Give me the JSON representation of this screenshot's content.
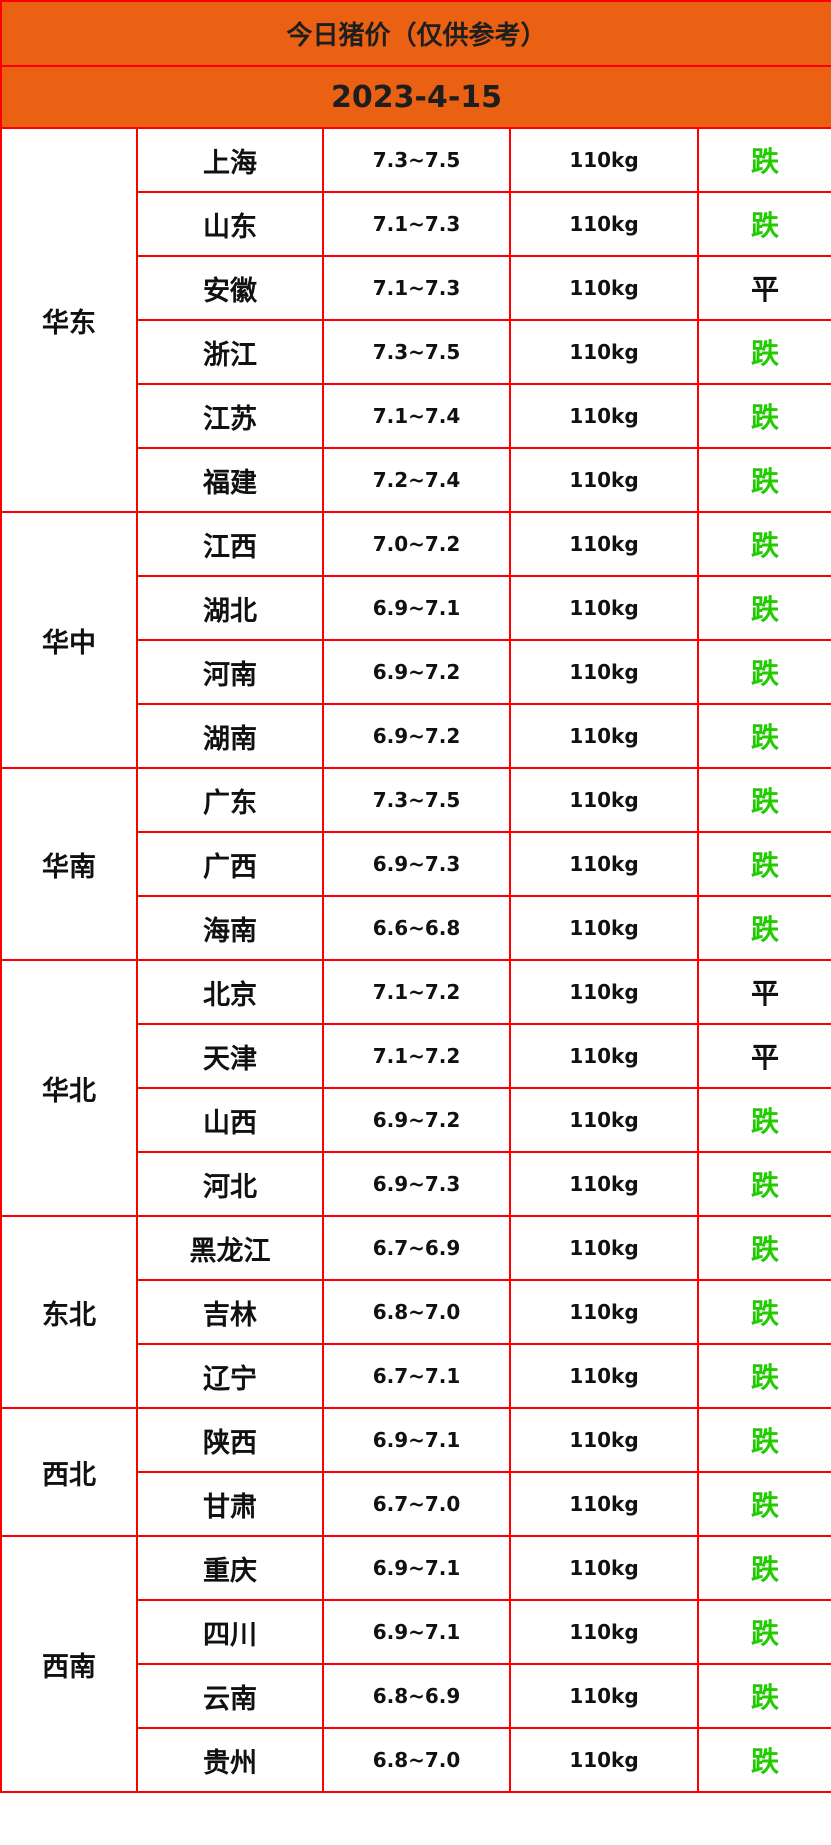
{
  "title": "今日猪价（仅供参考）",
  "date": "2023-4-15",
  "colors": {
    "header_bg": "#ea6114",
    "border": "#ff0000",
    "down": "#22cc00",
    "flat": "#111111"
  },
  "regions": [
    {
      "name": "华东",
      "rows": [
        {
          "province": "上海",
          "price": "7.3~7.5",
          "weight": "110kg",
          "trend": "跌"
        },
        {
          "province": "山东",
          "price": "7.1~7.3",
          "weight": "110kg",
          "trend": "跌"
        },
        {
          "province": "安徽",
          "price": "7.1~7.3",
          "weight": "110kg",
          "trend": "平"
        },
        {
          "province": "浙江",
          "price": "7.3~7.5",
          "weight": "110kg",
          "trend": "跌"
        },
        {
          "province": "江苏",
          "price": "7.1~7.4",
          "weight": "110kg",
          "trend": "跌"
        },
        {
          "province": "福建",
          "price": "7.2~7.4",
          "weight": "110kg",
          "trend": "跌"
        }
      ]
    },
    {
      "name": "华中",
      "rows": [
        {
          "province": "江西",
          "price": "7.0~7.2",
          "weight": "110kg",
          "trend": "跌"
        },
        {
          "province": "湖北",
          "price": "6.9~7.1",
          "weight": "110kg",
          "trend": "跌"
        },
        {
          "province": "河南",
          "price": "6.9~7.2",
          "weight": "110kg",
          "trend": "跌"
        },
        {
          "province": "湖南",
          "price": "6.9~7.2",
          "weight": "110kg",
          "trend": "跌"
        }
      ]
    },
    {
      "name": "华南",
      "rows": [
        {
          "province": "广东",
          "price": "7.3~7.5",
          "weight": "110kg",
          "trend": "跌"
        },
        {
          "province": "广西",
          "price": "6.9~7.3",
          "weight": "110kg",
          "trend": "跌"
        },
        {
          "province": "海南",
          "price": "6.6~6.8",
          "weight": "110kg",
          "trend": "跌"
        }
      ]
    },
    {
      "name": "华北",
      "rows": [
        {
          "province": "北京",
          "price": "7.1~7.2",
          "weight": "110kg",
          "trend": "平"
        },
        {
          "province": "天津",
          "price": "7.1~7.2",
          "weight": "110kg",
          "trend": "平"
        },
        {
          "province": "山西",
          "price": "6.9~7.2",
          "weight": "110kg",
          "trend": "跌"
        },
        {
          "province": "河北",
          "price": "6.9~7.3",
          "weight": "110kg",
          "trend": "跌"
        }
      ]
    },
    {
      "name": "东北",
      "rows": [
        {
          "province": "黑龙江",
          "price": "6.7~6.9",
          "weight": "110kg",
          "trend": "跌"
        },
        {
          "province": "吉林",
          "price": "6.8~7.0",
          "weight": "110kg",
          "trend": "跌"
        },
        {
          "province": "辽宁",
          "price": "6.7~7.1",
          "weight": "110kg",
          "trend": "跌"
        }
      ]
    },
    {
      "name": "西北",
      "rows": [
        {
          "province": "陕西",
          "price": "6.9~7.1",
          "weight": "110kg",
          "trend": "跌"
        },
        {
          "province": "甘肃",
          "price": "6.7~7.0",
          "weight": "110kg",
          "trend": "跌"
        }
      ]
    },
    {
      "name": "西南",
      "rows": [
        {
          "province": "重庆",
          "price": "6.9~7.1",
          "weight": "110kg",
          "trend": "跌"
        },
        {
          "province": "四川",
          "price": "6.9~7.1",
          "weight": "110kg",
          "trend": "跌"
        },
        {
          "province": "云南",
          "price": "6.8~6.9",
          "weight": "110kg",
          "trend": "跌"
        },
        {
          "province": "贵州",
          "price": "6.8~7.0",
          "weight": "110kg",
          "trend": "跌"
        }
      ]
    }
  ]
}
